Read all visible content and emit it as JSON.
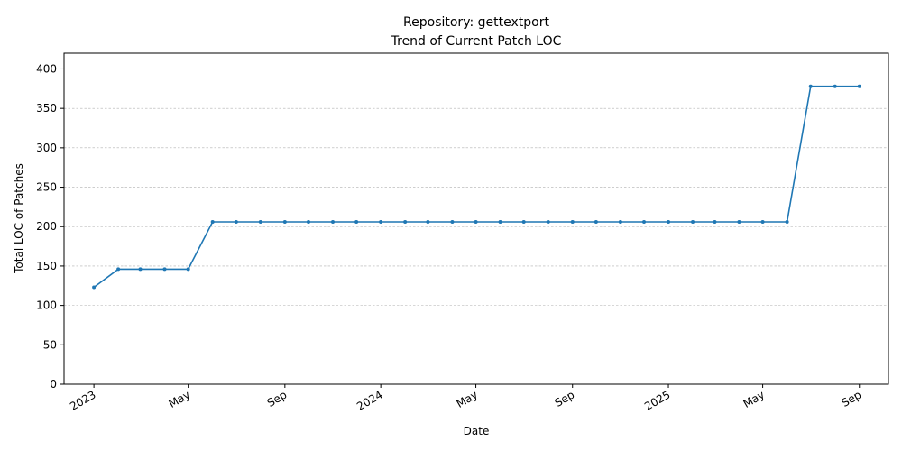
{
  "chart_data": {
    "type": "line",
    "title": "Repository: gettextport",
    "subtitle": "Trend of Current Patch LOC",
    "xlabel": "Date",
    "ylabel": "Total LOC of Patches",
    "ylim": [
      0,
      420
    ],
    "yticks": [
      0,
      50,
      100,
      150,
      200,
      250,
      300,
      350,
      400
    ],
    "xlim": [
      "2022-11-24",
      "2025-10-08"
    ],
    "xticks": [
      {
        "date": "2023-01-01",
        "label": "2023"
      },
      {
        "date": "2023-05-01",
        "label": "May"
      },
      {
        "date": "2023-09-01",
        "label": "Sep"
      },
      {
        "date": "2024-01-01",
        "label": "2024"
      },
      {
        "date": "2024-05-01",
        "label": "May"
      },
      {
        "date": "2024-09-01",
        "label": "Sep"
      },
      {
        "date": "2025-01-01",
        "label": "2025"
      },
      {
        "date": "2025-05-01",
        "label": "May"
      },
      {
        "date": "2025-09-01",
        "label": "Sep"
      }
    ],
    "grid": "horizontal dashed",
    "color": "#1f77b4",
    "series": [
      {
        "points": [
          {
            "x": "2023-01-01",
            "y": 123
          },
          {
            "x": "2023-02-01",
            "y": 146
          },
          {
            "x": "2023-03-01",
            "y": 146
          },
          {
            "x": "2023-04-01",
            "y": 146
          },
          {
            "x": "2023-05-01",
            "y": 146
          },
          {
            "x": "2023-06-01",
            "y": 206
          },
          {
            "x": "2023-07-01",
            "y": 206
          },
          {
            "x": "2023-08-01",
            "y": 206
          },
          {
            "x": "2023-09-01",
            "y": 206
          },
          {
            "x": "2023-10-01",
            "y": 206
          },
          {
            "x": "2023-11-01",
            "y": 206
          },
          {
            "x": "2023-12-01",
            "y": 206
          },
          {
            "x": "2024-01-01",
            "y": 206
          },
          {
            "x": "2024-02-01",
            "y": 206
          },
          {
            "x": "2024-03-01",
            "y": 206
          },
          {
            "x": "2024-04-01",
            "y": 206
          },
          {
            "x": "2024-05-01",
            "y": 206
          },
          {
            "x": "2024-06-01",
            "y": 206
          },
          {
            "x": "2024-07-01",
            "y": 206
          },
          {
            "x": "2024-08-01",
            "y": 206
          },
          {
            "x": "2024-09-01",
            "y": 206
          },
          {
            "x": "2024-10-01",
            "y": 206
          },
          {
            "x": "2024-11-01",
            "y": 206
          },
          {
            "x": "2024-12-01",
            "y": 206
          },
          {
            "x": "2025-01-01",
            "y": 206
          },
          {
            "x": "2025-02-01",
            "y": 206
          },
          {
            "x": "2025-03-01",
            "y": 206
          },
          {
            "x": "2025-04-01",
            "y": 206
          },
          {
            "x": "2025-05-01",
            "y": 206
          },
          {
            "x": "2025-06-01",
            "y": 206
          },
          {
            "x": "2025-07-01",
            "y": 378
          },
          {
            "x": "2025-08-01",
            "y": 378
          },
          {
            "x": "2025-09-01",
            "y": 378
          }
        ]
      }
    ]
  }
}
